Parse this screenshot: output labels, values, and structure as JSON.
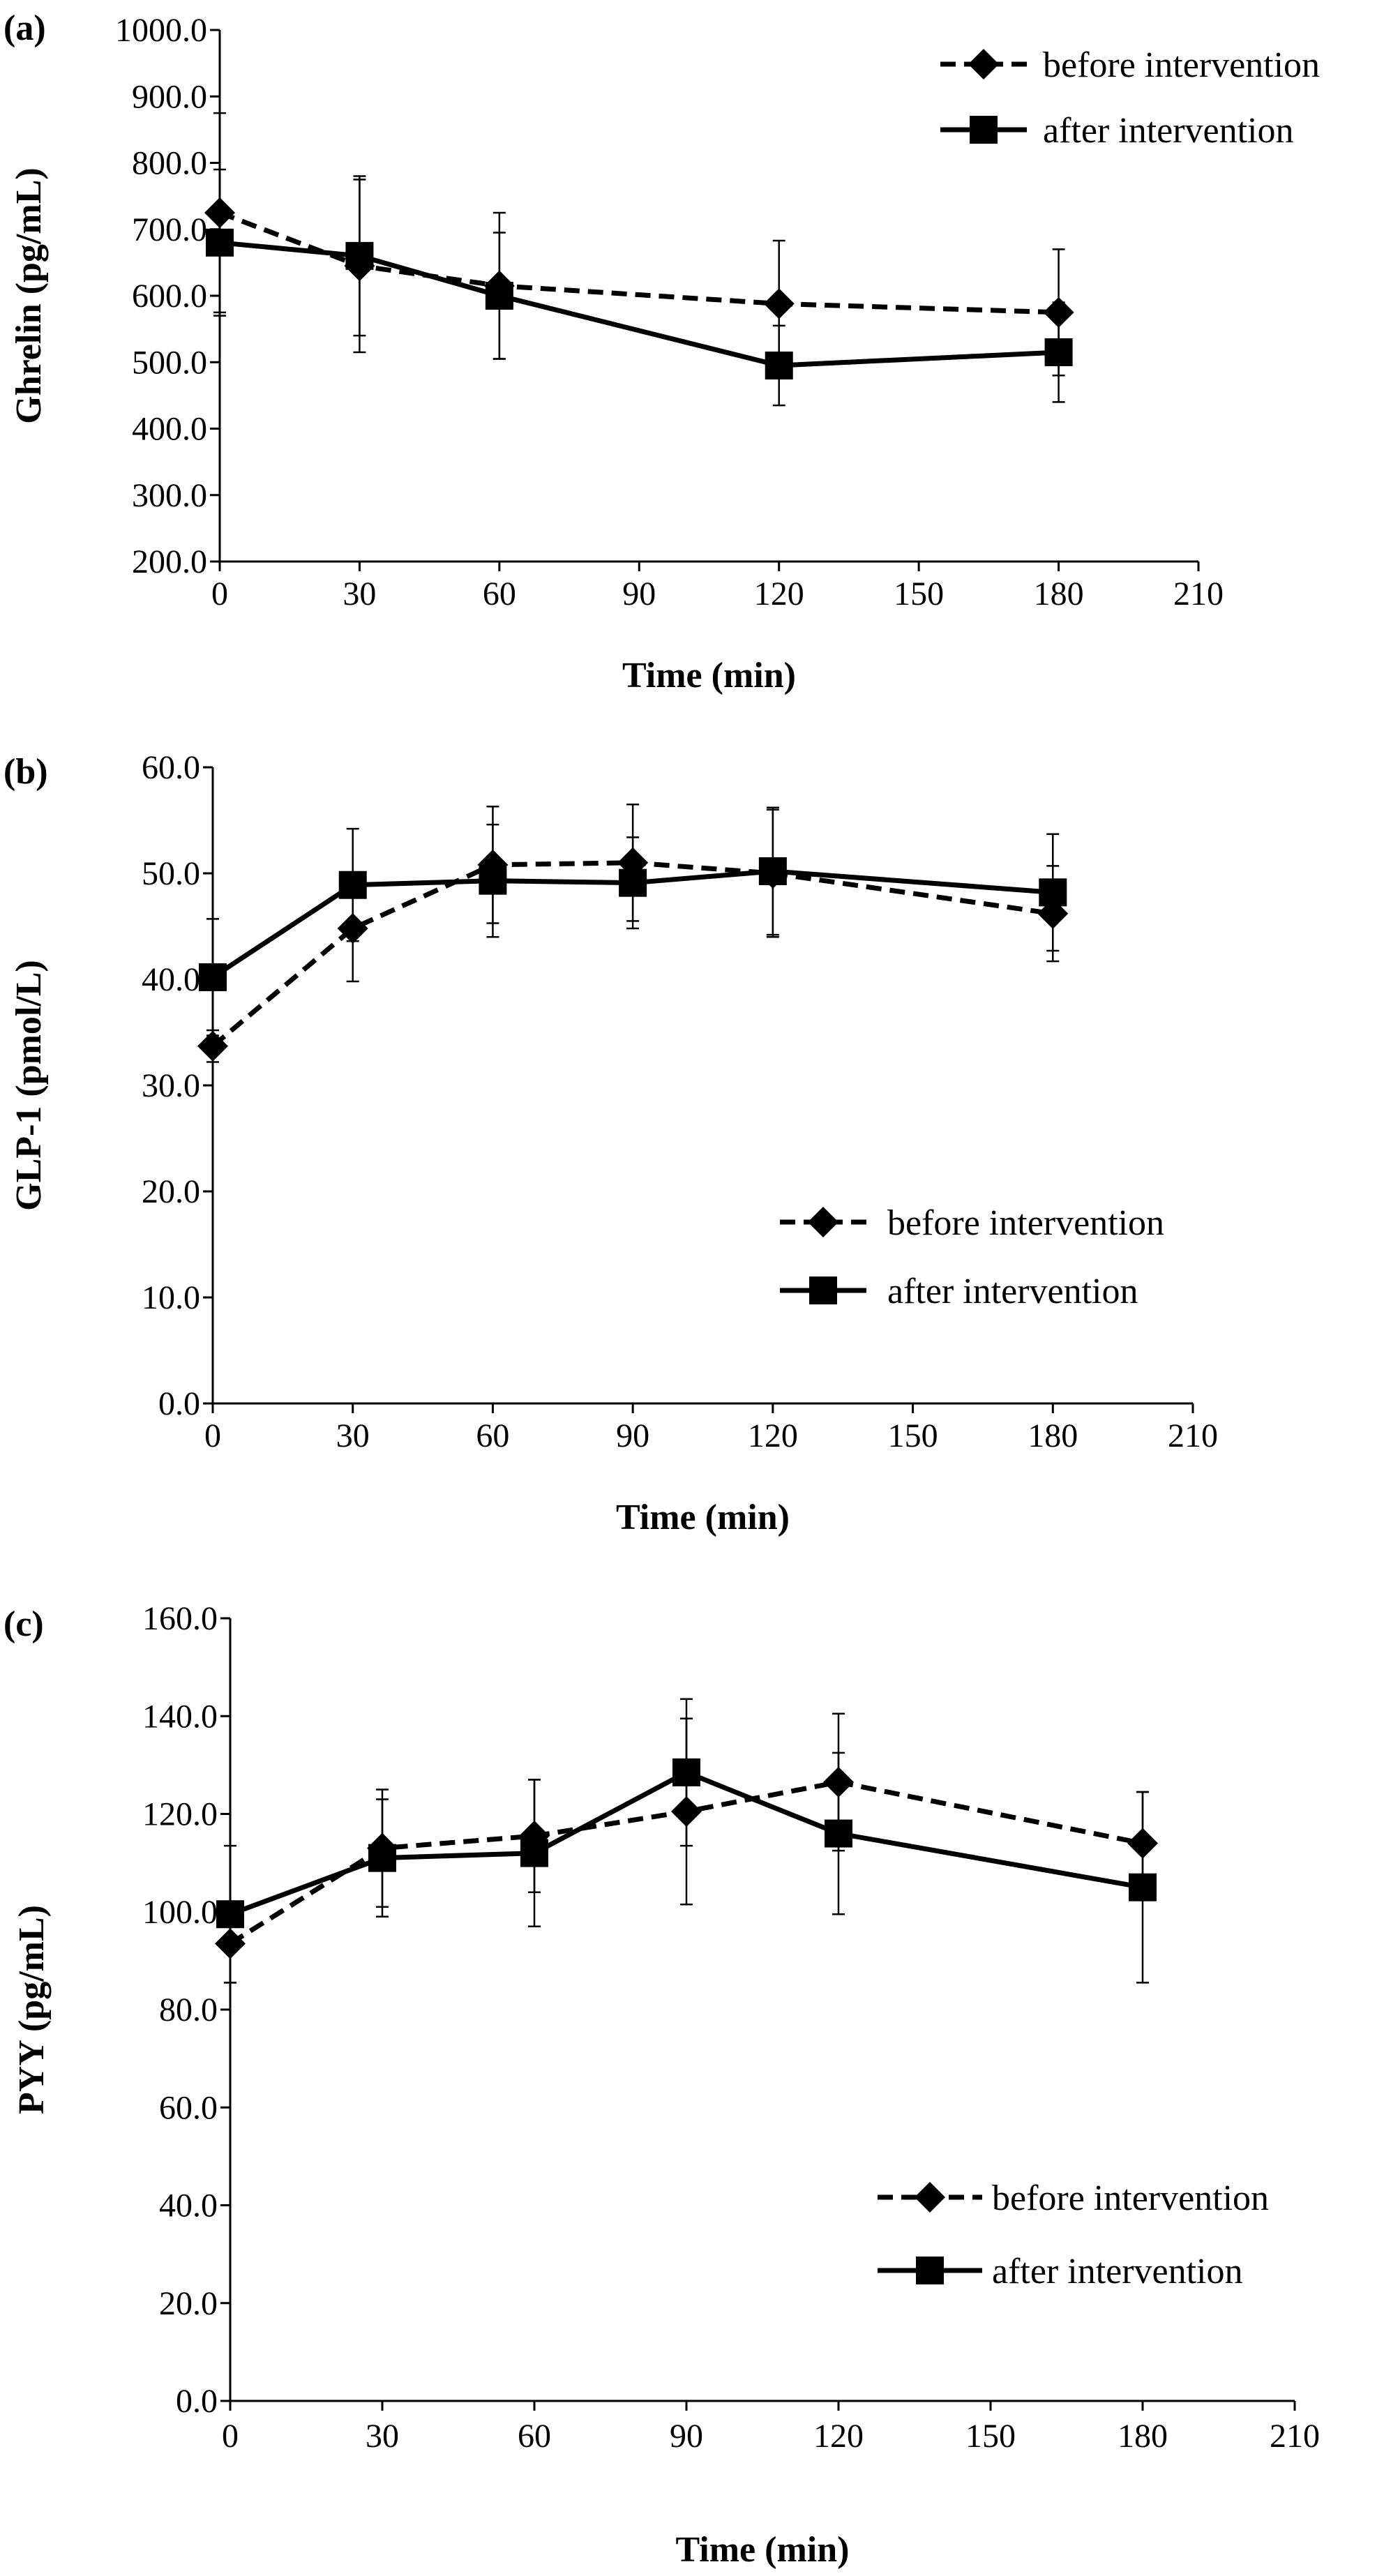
{
  "figure": {
    "background": "#ffffff",
    "series_style": {
      "before intervention": {
        "marker": "diamond",
        "line": "dashed",
        "color": "#000000"
      },
      "after intervention": {
        "marker": "square",
        "line": "solid",
        "color": "#000000"
      }
    }
  },
  "chart_data": [
    {
      "panel": "(a)",
      "type": "line",
      "xlabel": "Time (min)",
      "ylabel": "Ghrelin (pg/mL)",
      "xlim": [
        0,
        210
      ],
      "ylim": [
        200,
        1000
      ],
      "xticks": [
        0,
        30,
        60,
        90,
        120,
        150,
        180,
        210
      ],
      "yticks": [
        "200.0",
        "300.0",
        "400.0",
        "500.0",
        "600.0",
        "700.0",
        "800.0",
        "900.0",
        "1000.0"
      ],
      "ytick_values": [
        200,
        300,
        400,
        500,
        600,
        700,
        800,
        900,
        1000
      ],
      "legend": "top-right",
      "x": [
        0,
        30,
        60,
        120,
        180
      ],
      "series": [
        {
          "name": "before intervention",
          "marker": "diamond",
          "line": "dashed",
          "values": [
            725,
            645,
            615,
            588,
            575
          ],
          "error": [
            150,
            130,
            110,
            95,
            95
          ]
        },
        {
          "name": "after intervention",
          "marker": "square",
          "line": "solid",
          "values": [
            680,
            660,
            600,
            495,
            515
          ],
          "error": [
            110,
            120,
            95,
            60,
            75
          ]
        }
      ]
    },
    {
      "panel": "(b)",
      "type": "line",
      "xlabel": "Time (min)",
      "ylabel": "GLP-1 (pmol/L)",
      "xlim": [
        0,
        210
      ],
      "ylim": [
        0,
        60
      ],
      "xticks": [
        0,
        30,
        60,
        90,
        120,
        150,
        180,
        210
      ],
      "yticks": [
        "0.0",
        "10.0",
        "20.0",
        "30.0",
        "40.0",
        "50.0",
        "60.0"
      ],
      "ytick_values": [
        0,
        10,
        20,
        30,
        40,
        50,
        60
      ],
      "legend": "lower-right",
      "x": [
        0,
        30,
        60,
        90,
        120,
        180
      ],
      "series": [
        {
          "name": "before intervention",
          "marker": "diamond",
          "line": "dashed",
          "values": [
            33.7,
            44.8,
            50.8,
            51.0,
            50.0,
            46.2
          ],
          "error": [
            1.5,
            5.0,
            5.5,
            5.5,
            6.0,
            4.5
          ]
        },
        {
          "name": "after intervention",
          "marker": "square",
          "line": "solid",
          "values": [
            40.2,
            48.9,
            49.3,
            49.1,
            50.2,
            48.2
          ],
          "error": [
            5.5,
            5.3,
            5.3,
            4.3,
            6.0,
            5.5
          ]
        }
      ]
    },
    {
      "panel": "(c)",
      "type": "line",
      "xlabel": "Time (min)",
      "ylabel": "PYY (pg/mL)",
      "xlim": [
        0,
        210
      ],
      "ylim": [
        0,
        160
      ],
      "xticks": [
        0,
        30,
        60,
        90,
        120,
        150,
        180,
        210
      ],
      "yticks": [
        "0.0",
        "20.0",
        "40.0",
        "60.0",
        "80.0",
        "100.0",
        "120.0",
        "140.0",
        "160.0"
      ],
      "ytick_values": [
        0,
        20,
        40,
        60,
        80,
        100,
        120,
        140,
        160
      ],
      "legend": "lower-right",
      "x": [
        0,
        30,
        60,
        90,
        120,
        180
      ],
      "series": [
        {
          "name": "before intervention",
          "marker": "diamond",
          "line": "dashed",
          "values": [
            93.5,
            113.0,
            115.5,
            120.5,
            126.5,
            114.0
          ],
          "error": [
            8.0,
            12.0,
            11.5,
            19.0,
            14.0,
            10.5
          ]
        },
        {
          "name": "after intervention",
          "marker": "square",
          "line": "solid",
          "values": [
            99.5,
            111.0,
            112.0,
            128.5,
            116.0,
            105.0
          ],
          "error": [
            14.0,
            12.0,
            15.0,
            15.0,
            16.5,
            19.5
          ]
        }
      ]
    }
  ]
}
